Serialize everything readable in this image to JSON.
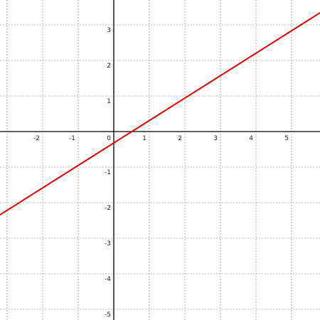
{
  "chart_data": {
    "type": "line",
    "title": "",
    "xlabel": "",
    "ylabel": "",
    "xlim": [
      -3.2,
      5.8
    ],
    "ylim": [
      -5.3,
      3.7
    ],
    "grid": true,
    "x_ticks": [
      -2,
      -1,
      0,
      1,
      2,
      3,
      4,
      5
    ],
    "y_ticks": [
      3,
      2,
      1,
      -1,
      -2,
      -3,
      -4,
      -5
    ],
    "x_tick_labels": [
      "-2",
      "-1",
      "0",
      "1",
      "2",
      "3",
      "4",
      "5"
    ],
    "y_tick_labels": [
      "3",
      "2",
      "1",
      "-1",
      "-2",
      "-3",
      "-4",
      "-5"
    ],
    "series": [
      {
        "color": "#e00000",
        "x": [
          -3.2,
          5.8
        ],
        "y": [
          -2.34,
          3.34
        ]
      }
    ]
  }
}
